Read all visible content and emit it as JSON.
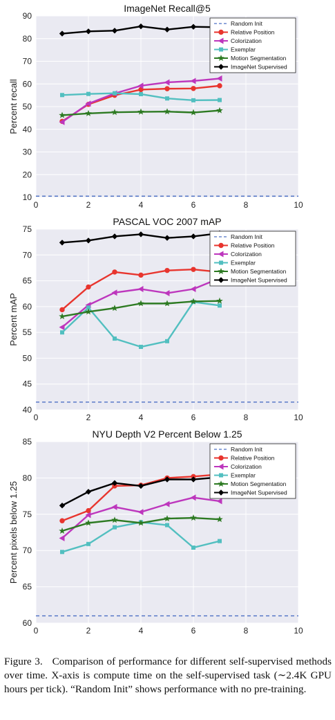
{
  "chart_data": [
    {
      "type": "line",
      "title": "ImageNet Recall@5",
      "xlabel": "",
      "ylabel": "Percent recall",
      "xlim": [
        0,
        10
      ],
      "ylim": [
        10,
        90
      ],
      "xticks": [
        0,
        2,
        4,
        6,
        8,
        10
      ],
      "yticks": [
        10,
        20,
        30,
        40,
        50,
        60,
        70,
        80,
        90
      ],
      "grid": true,
      "legend_position": "top-right",
      "x": [
        1,
        2,
        3,
        4,
        5,
        6,
        7
      ],
      "series": [
        {
          "name": "Random Init",
          "color": "#4c6fc4",
          "marker": "none",
          "dashed": true,
          "values": [
            10.5,
            10.5,
            10.5,
            10.5,
            10.5,
            10.5,
            10.5
          ]
        },
        {
          "name": "Relative Position",
          "color": "#e8352e",
          "marker": "circle",
          "values": [
            43.5,
            51.0,
            55.0,
            57.5,
            57.9,
            58.0,
            59.2
          ]
        },
        {
          "name": "Colorization",
          "color": "#bd36bd",
          "marker": "triangle-left",
          "values": [
            43.2,
            51.3,
            55.8,
            59.2,
            60.7,
            61.3,
            62.4
          ]
        },
        {
          "name": "Exemplar",
          "color": "#52bfc0",
          "marker": "square",
          "values": [
            55.1,
            55.6,
            55.9,
            55.5,
            53.6,
            52.8,
            52.9
          ]
        },
        {
          "name": "Motion Segmentation",
          "color": "#2d7a22",
          "marker": "star",
          "values": [
            46.2,
            47.0,
            47.5,
            47.7,
            47.8,
            47.4,
            48.3
          ]
        },
        {
          "name": "ImageNet Supervised",
          "color": "#000000",
          "marker": "diamond",
          "values": [
            82.2,
            83.2,
            83.5,
            85.4,
            84.0,
            85.2,
            85.0
          ]
        }
      ]
    },
    {
      "type": "line",
      "title": "PASCAL VOC 2007 mAP",
      "xlabel": "",
      "ylabel": "Percent mAP",
      "xlim": [
        0,
        10
      ],
      "ylim": [
        40,
        75
      ],
      "xticks": [
        0,
        2,
        4,
        6,
        8,
        10
      ],
      "yticks": [
        40,
        45,
        50,
        55,
        60,
        65,
        70,
        75
      ],
      "grid": true,
      "legend_position": "top-right",
      "x": [
        1,
        2,
        3,
        4,
        5,
        6,
        7
      ],
      "series": [
        {
          "name": "Random Init",
          "color": "#4c6fc4",
          "marker": "none",
          "dashed": true,
          "values": [
            41.5,
            41.5,
            41.5,
            41.5,
            41.5,
            41.5,
            41.5
          ]
        },
        {
          "name": "Relative Position",
          "color": "#e8352e",
          "marker": "circle",
          "values": [
            59.4,
            63.8,
            66.7,
            66.1,
            67.0,
            67.2,
            66.7
          ]
        },
        {
          "name": "Colorization",
          "color": "#bd36bd",
          "marker": "triangle-left",
          "values": [
            56.0,
            60.3,
            62.7,
            63.4,
            62.6,
            63.4,
            65.5
          ]
        },
        {
          "name": "Exemplar",
          "color": "#52bfc0",
          "marker": "square",
          "values": [
            55.0,
            59.8,
            53.8,
            52.2,
            53.3,
            60.9,
            60.2
          ]
        },
        {
          "name": "Motion Segmentation",
          "color": "#2d7a22",
          "marker": "star",
          "values": [
            58.1,
            59.0,
            59.7,
            60.6,
            60.6,
            61.0,
            61.1
          ]
        },
        {
          "name": "ImageNet Supervised",
          "color": "#000000",
          "marker": "diamond",
          "values": [
            72.4,
            72.8,
            73.6,
            74.0,
            73.3,
            73.6,
            74.2
          ]
        }
      ]
    },
    {
      "type": "line",
      "title": "NYU Depth V2 Percent Below 1.25",
      "xlabel": "",
      "ylabel": "Percent pixels below 1.25",
      "xlim": [
        0,
        10
      ],
      "ylim": [
        60,
        85
      ],
      "xticks": [
        0,
        2,
        4,
        6,
        8,
        10
      ],
      "yticks": [
        60,
        65,
        70,
        75,
        80,
        85
      ],
      "grid": true,
      "legend_position": "top-right",
      "x": [
        1,
        2,
        3,
        4,
        5,
        6,
        7
      ],
      "series": [
        {
          "name": "Random Init",
          "color": "#4c6fc4",
          "marker": "none",
          "dashed": true,
          "values": [
            61.0,
            61.0,
            61.0,
            61.0,
            61.0,
            61.0,
            61.0
          ]
        },
        {
          "name": "Relative Position",
          "color": "#e8352e",
          "marker": "circle",
          "values": [
            74.1,
            75.5,
            78.9,
            79.0,
            80.0,
            80.2,
            80.5
          ]
        },
        {
          "name": "Colorization",
          "color": "#bd36bd",
          "marker": "triangle-left",
          "values": [
            71.7,
            74.9,
            76.0,
            75.3,
            76.4,
            77.3,
            76.8
          ]
        },
        {
          "name": "Exemplar",
          "color": "#52bfc0",
          "marker": "square",
          "values": [
            69.8,
            70.9,
            73.2,
            73.9,
            73.5,
            70.4,
            71.3
          ]
        },
        {
          "name": "Motion Segmentation",
          "color": "#2d7a22",
          "marker": "star",
          "values": [
            72.7,
            73.8,
            74.2,
            73.8,
            74.4,
            74.5,
            74.3
          ]
        },
        {
          "name": "ImageNet Supervised",
          "color": "#000000",
          "marker": "diamond",
          "values": [
            76.2,
            78.1,
            79.3,
            78.9,
            79.8,
            79.8,
            80.1
          ]
        }
      ]
    }
  ],
  "caption": {
    "label": "Figure 3.",
    "text": "Comparison of performance for different self-supervised methods over time. X-axis is compute time on the self-supervised task (∼2.4K GPU hours per tick). “Random Init” shows performance with no pre-training."
  }
}
